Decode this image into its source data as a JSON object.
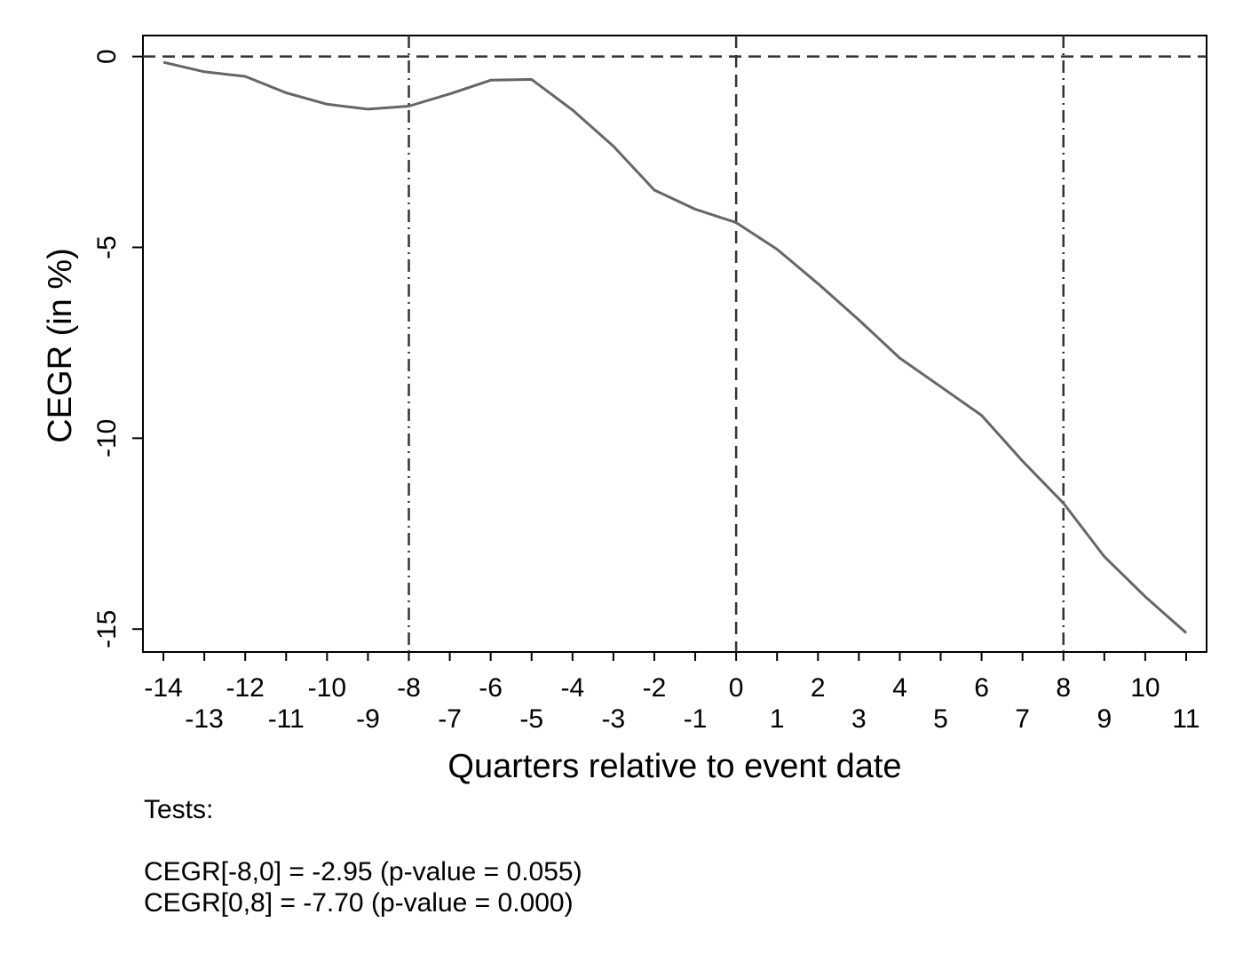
{
  "chart_data": {
    "type": "line",
    "xlabel": "Quarters relative to event date",
    "ylabel": "CEGR (in %)",
    "xlim": [
      -14.5,
      11.5
    ],
    "ylim": [
      -15.6,
      0.55
    ],
    "x": [
      -14,
      -13,
      -12,
      -11,
      -10,
      -9,
      -8,
      -7,
      -6,
      -5,
      -4,
      -3,
      -2,
      -1,
      0,
      1,
      2,
      3,
      4,
      5,
      6,
      7,
      8,
      9,
      10,
      11
    ],
    "series": [
      {
        "color": "#666666",
        "values": [
          -0.15,
          -0.4,
          -0.52,
          -0.95,
          -1.25,
          -1.38,
          -1.3,
          -0.98,
          -0.62,
          -0.6,
          -1.4,
          -2.35,
          -3.5,
          -4.0,
          -4.35,
          -5.05,
          -5.95,
          -6.9,
          -7.9,
          -8.65,
          -9.4,
          -10.6,
          -11.7,
          -13.1,
          -14.15,
          -15.1
        ]
      }
    ],
    "xticks_top": [
      "-14",
      "-12",
      "-10",
      "-8",
      "-6",
      "-4",
      "-2",
      "0",
      "2",
      "4",
      "6",
      "8",
      "10"
    ],
    "xticks_bottom": [
      "-13",
      "-11",
      "-9",
      "-7",
      "-5",
      "-3",
      "-1",
      "1",
      "3",
      "5",
      "7",
      "9",
      "11"
    ],
    "yticks": [
      0,
      -5,
      -10,
      -15
    ],
    "reference_lines": [
      {
        "axis": "y",
        "value": 0,
        "style": "dashed"
      },
      {
        "axis": "x",
        "value": -8,
        "style": "dash-dot"
      },
      {
        "axis": "x",
        "value": 0,
        "style": "dashed"
      },
      {
        "axis": "x",
        "value": 8,
        "style": "dash-dot"
      }
    ],
    "grid": false,
    "legend": "none"
  },
  "notes": {
    "heading": "Tests:",
    "line1": "CEGR[-8,0] = -2.95 (p-value = 0.055)",
    "line2": "CEGR[0,8] = -7.70 (p-value = 0.000)"
  }
}
